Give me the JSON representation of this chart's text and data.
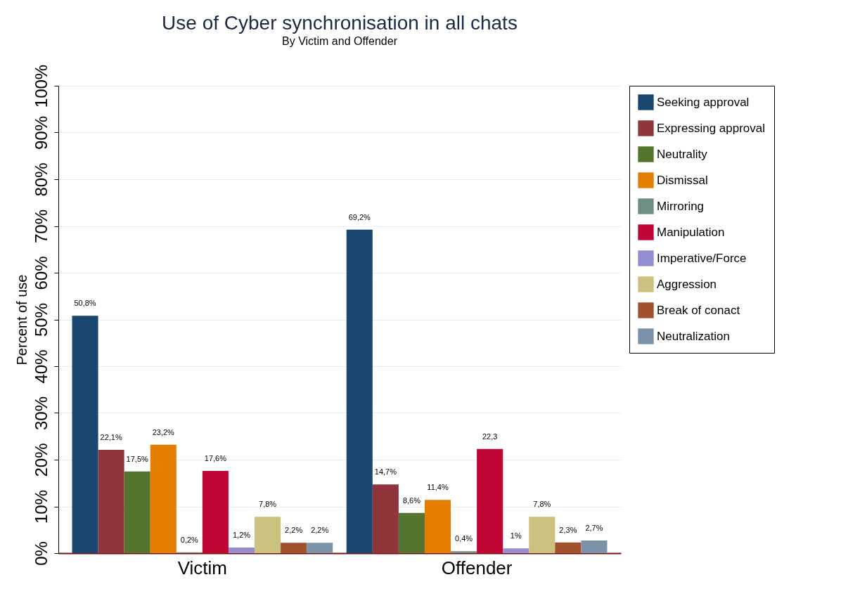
{
  "chart_data": {
    "type": "bar",
    "title": "Use of Cyber synchronisation in all chats",
    "subtitle": "By Victim and Offender",
    "ylabel": "Percent of use",
    "categories": [
      "Victim",
      "Offender"
    ],
    "series": [
      {
        "name": "Seeking approval",
        "color": "#1a476f",
        "values": [
          50.8,
          69.2
        ],
        "value_labels": [
          "50,8%",
          "69,2%"
        ]
      },
      {
        "name": "Expressing approval",
        "color": "#90353b",
        "values": [
          22.1,
          14.7
        ],
        "value_labels": [
          "22,1%",
          "14,7%"
        ]
      },
      {
        "name": "Neutrality",
        "color": "#55752f",
        "values": [
          17.5,
          8.6
        ],
        "value_labels": [
          "17,5%",
          "8,6%"
        ]
      },
      {
        "name": "Dismissal",
        "color": "#e37e00",
        "values": [
          23.2,
          11.4
        ],
        "value_labels": [
          "23,2%",
          "11,4%"
        ]
      },
      {
        "name": "Mirroring",
        "color": "#6e8e84",
        "values": [
          0.2,
          0.4
        ],
        "value_labels": [
          "0,2%",
          "0,4%"
        ]
      },
      {
        "name": "Manipulation",
        "color": "#c10534",
        "values": [
          17.6,
          22.3
        ],
        "value_labels": [
          "17,6%",
          "22,3"
        ]
      },
      {
        "name": "Imperative/Force",
        "color": "#938dd2",
        "values": [
          1.2,
          1
        ],
        "value_labels": [
          "1,2%",
          "1%"
        ]
      },
      {
        "name": "Aggression",
        "color": "#cac27e",
        "values": [
          7.8,
          7.8
        ],
        "value_labels": [
          "7,8%",
          "7,8%"
        ]
      },
      {
        "name": "Break of conact",
        "color": "#a0522d",
        "values": [
          2.2,
          2.3
        ],
        "value_labels": [
          "2,2%",
          "2,3%"
        ]
      },
      {
        "name": "Neutralization",
        "color": "#7b92a8",
        "values": [
          2.2,
          2.7
        ],
        "value_labels": [
          "2,2%",
          "2,7%"
        ]
      }
    ],
    "ylim": [
      0,
      100
    ],
    "yticks": [
      {
        "value": 0,
        "label": "0%"
      },
      {
        "value": 10,
        "label": "10%"
      },
      {
        "value": 20,
        "label": "20%"
      },
      {
        "value": 30,
        "label": "30%"
      },
      {
        "value": 40,
        "label": "40%"
      },
      {
        "value": 50,
        "label": "50%"
      },
      {
        "value": 60,
        "label": "60%"
      },
      {
        "value": 70,
        "label": "70%"
      },
      {
        "value": 80,
        "label": "80%"
      },
      {
        "value": 90,
        "label": "90%"
      },
      {
        "value": 100,
        "label": "100%"
      }
    ],
    "grid": "y",
    "legend": "right"
  }
}
